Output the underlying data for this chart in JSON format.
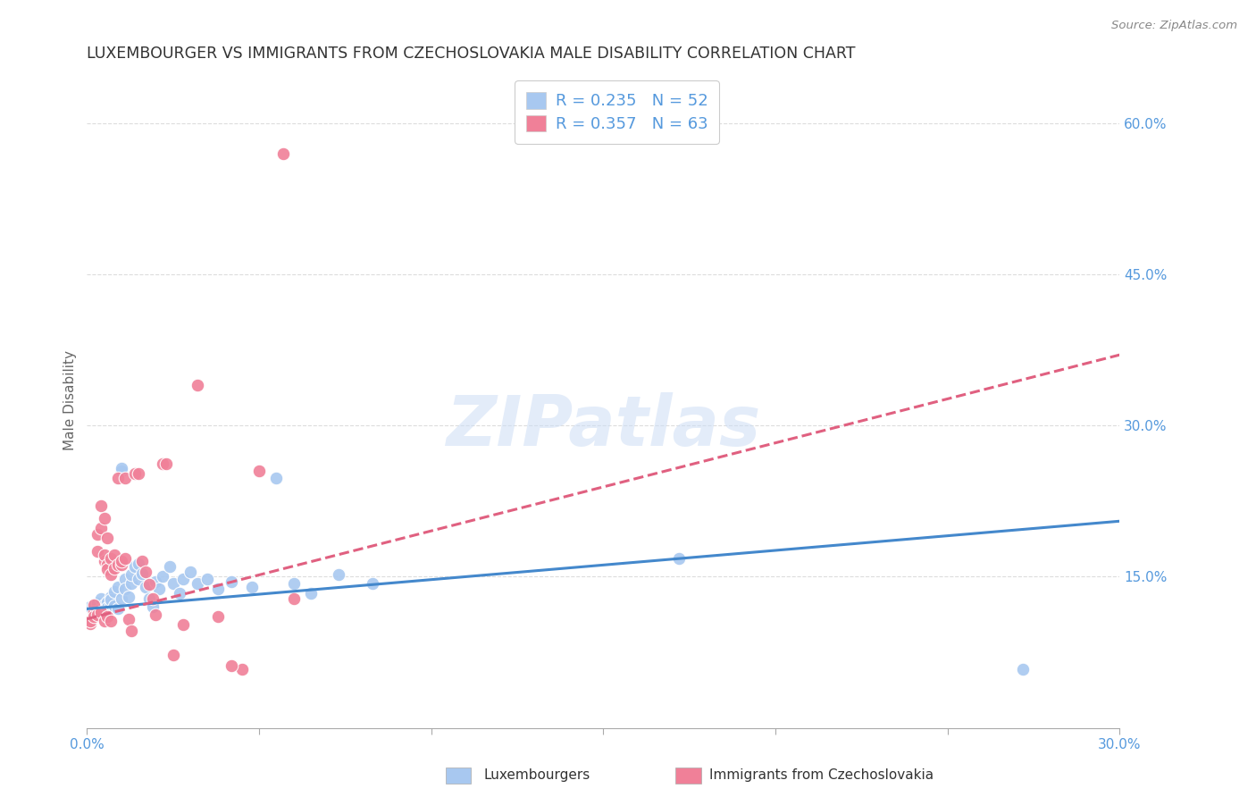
{
  "title": "LUXEMBOURGER VS IMMIGRANTS FROM CZECHOSLOVAKIA MALE DISABILITY CORRELATION CHART",
  "source": "Source: ZipAtlas.com",
  "ylabel": "Male Disability",
  "xlim": [
    0.0,
    0.3
  ],
  "ylim": [
    0.0,
    0.65
  ],
  "xticks": [
    0.0,
    0.05,
    0.1,
    0.15,
    0.2,
    0.25,
    0.3
  ],
  "xtick_labels": [
    "0.0%",
    "",
    "",
    "",
    "",
    "",
    "30.0%"
  ],
  "yticks_right": [
    0.15,
    0.3,
    0.45,
    0.6
  ],
  "ytick_labels_right": [
    "15.0%",
    "30.0%",
    "45.0%",
    "60.0%"
  ],
  "color_blue": "#a8c8f0",
  "color_pink": "#f08098",
  "color_blue_line": "#4488cc",
  "color_pink_line": "#e06080",
  "color_blue_text": "#5599dd",
  "color_axis": "#5599dd",
  "blue_line_x": [
    0.0,
    0.3
  ],
  "blue_line_y": [
    0.118,
    0.205
  ],
  "pink_line_x": [
    0.0,
    0.3
  ],
  "pink_line_y": [
    0.108,
    0.37
  ],
  "blue_scatter": [
    [
      0.001,
      0.12
    ],
    [
      0.002,
      0.122
    ],
    [
      0.003,
      0.119
    ],
    [
      0.003,
      0.124
    ],
    [
      0.004,
      0.118
    ],
    [
      0.004,
      0.128
    ],
    [
      0.005,
      0.122
    ],
    [
      0.005,
      0.116
    ],
    [
      0.006,
      0.125
    ],
    [
      0.006,
      0.119
    ],
    [
      0.007,
      0.13
    ],
    [
      0.007,
      0.123
    ],
    [
      0.007,
      0.127
    ],
    [
      0.008,
      0.135
    ],
    [
      0.008,
      0.121
    ],
    [
      0.009,
      0.14
    ],
    [
      0.009,
      0.118
    ],
    [
      0.01,
      0.255
    ],
    [
      0.01,
      0.258
    ],
    [
      0.01,
      0.128
    ],
    [
      0.011,
      0.148
    ],
    [
      0.011,
      0.138
    ],
    [
      0.012,
      0.13
    ],
    [
      0.013,
      0.143
    ],
    [
      0.013,
      0.152
    ],
    [
      0.014,
      0.16
    ],
    [
      0.015,
      0.163
    ],
    [
      0.015,
      0.148
    ],
    [
      0.016,
      0.153
    ],
    [
      0.017,
      0.14
    ],
    [
      0.018,
      0.128
    ],
    [
      0.019,
      0.12
    ],
    [
      0.02,
      0.145
    ],
    [
      0.021,
      0.138
    ],
    [
      0.022,
      0.15
    ],
    [
      0.024,
      0.16
    ],
    [
      0.025,
      0.143
    ],
    [
      0.027,
      0.133
    ],
    [
      0.028,
      0.148
    ],
    [
      0.03,
      0.155
    ],
    [
      0.032,
      0.143
    ],
    [
      0.035,
      0.148
    ],
    [
      0.038,
      0.138
    ],
    [
      0.042,
      0.145
    ],
    [
      0.048,
      0.14
    ],
    [
      0.055,
      0.248
    ],
    [
      0.06,
      0.143
    ],
    [
      0.065,
      0.133
    ],
    [
      0.073,
      0.152
    ],
    [
      0.083,
      0.143
    ],
    [
      0.172,
      0.168
    ],
    [
      0.272,
      0.058
    ]
  ],
  "pink_scatter": [
    [
      0.001,
      0.103
    ],
    [
      0.001,
      0.106
    ],
    [
      0.002,
      0.115
    ],
    [
      0.002,
      0.122
    ],
    [
      0.002,
      0.11
    ],
    [
      0.003,
      0.192
    ],
    [
      0.003,
      0.175
    ],
    [
      0.003,
      0.112
    ],
    [
      0.004,
      0.198
    ],
    [
      0.004,
      0.22
    ],
    [
      0.004,
      0.115
    ],
    [
      0.005,
      0.208
    ],
    [
      0.005,
      0.165
    ],
    [
      0.005,
      0.172
    ],
    [
      0.005,
      0.106
    ],
    [
      0.006,
      0.188
    ],
    [
      0.006,
      0.162
    ],
    [
      0.006,
      0.157
    ],
    [
      0.006,
      0.11
    ],
    [
      0.007,
      0.168
    ],
    [
      0.007,
      0.152
    ],
    [
      0.007,
      0.106
    ],
    [
      0.008,
      0.172
    ],
    [
      0.008,
      0.158
    ],
    [
      0.009,
      0.248
    ],
    [
      0.009,
      0.162
    ],
    [
      0.01,
      0.162
    ],
    [
      0.01,
      0.165
    ],
    [
      0.011,
      0.248
    ],
    [
      0.011,
      0.168
    ],
    [
      0.012,
      0.108
    ],
    [
      0.013,
      0.096
    ],
    [
      0.014,
      0.252
    ],
    [
      0.015,
      0.252
    ],
    [
      0.016,
      0.165
    ],
    [
      0.017,
      0.155
    ],
    [
      0.018,
      0.142
    ],
    [
      0.019,
      0.128
    ],
    [
      0.02,
      0.112
    ],
    [
      0.022,
      0.262
    ],
    [
      0.023,
      0.262
    ],
    [
      0.025,
      0.072
    ],
    [
      0.028,
      0.102
    ],
    [
      0.032,
      0.34
    ],
    [
      0.045,
      0.058
    ],
    [
      0.05,
      0.255
    ],
    [
      0.06,
      0.128
    ],
    [
      0.057,
      0.57
    ],
    [
      0.038,
      0.11
    ],
    [
      0.042,
      0.062
    ]
  ],
  "background_color": "#ffffff",
  "grid_color": "#dddddd",
  "title_color": "#333333",
  "watermark": "ZIPatlas"
}
